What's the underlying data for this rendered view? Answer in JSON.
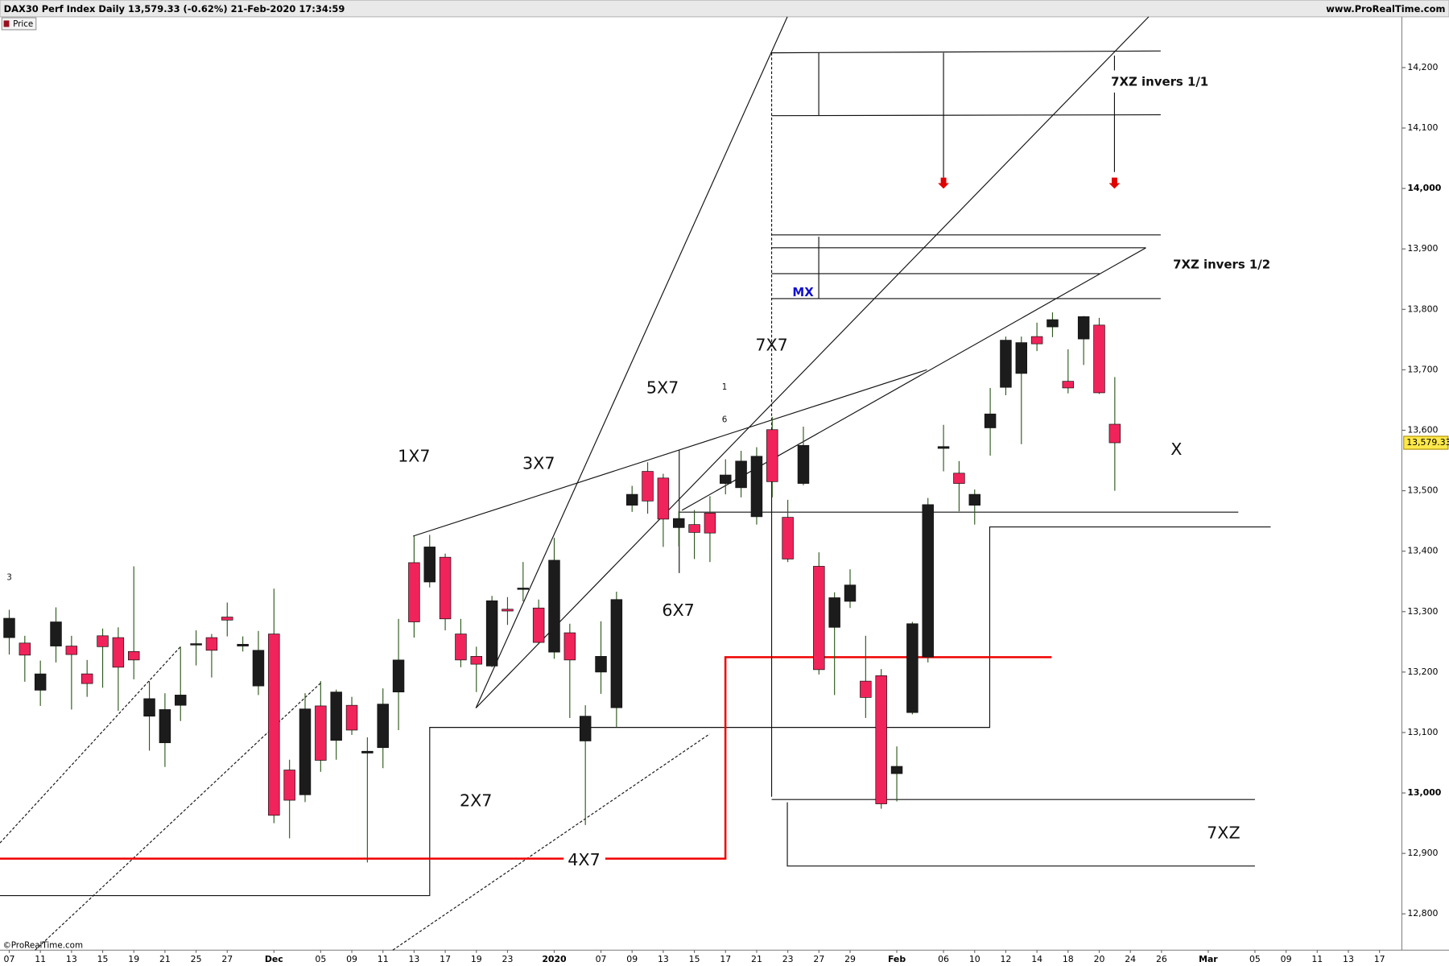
{
  "header": {
    "title": "DAX30 Perf Index Daily 13,579.33 (-0.62%) 21-Feb-2020 17:34:59",
    "site": "www.ProRealTime.com",
    "panel_label": "Price",
    "copyright": "©ProRealTime.com"
  },
  "chart_data": {
    "type": "candlestick",
    "categories": [
      "07",
      null,
      "11",
      null,
      "13",
      null,
      "15",
      null,
      "19",
      null,
      "21",
      null,
      "25",
      null,
      "27",
      null,
      null,
      "Dec",
      null,
      null,
      "05",
      null,
      "09",
      null,
      "11",
      null,
      "13",
      null,
      "17",
      null,
      "19",
      null,
      "23",
      null,
      null,
      "2020",
      null,
      null,
      "07",
      null,
      "09",
      null,
      "13",
      null,
      "15",
      null,
      "17",
      null,
      "21",
      null,
      "23",
      null,
      "27",
      null,
      "29",
      null,
      null,
      "Feb",
      null,
      null,
      "06",
      null,
      "10",
      null,
      "12",
      null,
      "14",
      null,
      "18",
      null,
      "20",
      null,
      "24",
      null,
      "26",
      null,
      null,
      "Mar",
      null,
      null,
      "05",
      null,
      "09",
      null,
      "11",
      null,
      "13",
      null,
      "17"
    ],
    "open": [
      13257,
      13248,
      13170,
      13243,
      13243,
      13197,
      13260,
      13257,
      13234,
      13127,
      13083,
      13145,
      13246,
      13257,
      13291,
      13243,
      13177,
      13263,
      13038,
      12997,
      13144,
      13087,
      13145,
      13066,
      13075,
      13167,
      13381,
      13349,
      13390,
      13263,
      13226,
      13210,
      13304,
      13337,
      13306,
      13233,
      13265,
      13086,
      13200,
      13141,
      13476,
      13532,
      13521,
      13439,
      13444,
      13463,
      13512,
      13505,
      13457,
      13601,
      13456,
      13512,
      13375,
      13274,
      13317,
      13185,
      13194,
      13032,
      13133,
      13225,
      13570,
      13529,
      13476,
      13604,
      13671,
      13694,
      13755,
      13771,
      13681,
      13751,
      13774,
      13610,
      null,
      null,
      null,
      null,
      null,
      null,
      null,
      null,
      null,
      null,
      null,
      null,
      null,
      null,
      null,
      null,
      null
    ],
    "high": [
      13303,
      13260,
      13219,
      13307,
      13260,
      13220,
      13272,
      13274,
      13375,
      13185,
      13165,
      13242,
      13269,
      13263,
      13315,
      13259,
      13268,
      13338,
      13055,
      13165,
      13185,
      13171,
      13159,
      13092,
      13173,
      13288,
      13425,
      13427,
      13396,
      13288,
      13242,
      13326,
      13324,
      13382,
      13320,
      13422,
      13280,
      13145,
      13284,
      13333,
      13508,
      13547,
      13528,
      13466,
      13468,
      13491,
      13552,
      13566,
      13572,
      13622,
      13485,
      13606,
      13398,
      13332,
      13370,
      13260,
      13205,
      13077,
      13283,
      13488,
      13609,
      13549,
      13502,
      13670,
      13755,
      13755,
      13778,
      13795,
      13734,
      13789,
      13786,
      13688,
      null,
      null,
      null,
      null,
      null,
      null,
      null,
      null,
      null,
      null,
      null,
      null,
      null,
      null,
      null,
      null,
      null
    ],
    "low": [
      13229,
      13184,
      13144,
      13216,
      13138,
      13159,
      13174,
      13136,
      13188,
      13070,
      13043,
      13119,
      13211,
      13191,
      13259,
      13234,
      13162,
      12950,
      12925,
      12985,
      13035,
      13055,
      13096,
      12885,
      13041,
      13104,
      13257,
      13340,
      13269,
      13208,
      13167,
      13208,
      13278,
      13317,
      13246,
      13222,
      13124,
      12947,
      13164,
      13109,
      13465,
      13462,
      13407,
      13408,
      13387,
      13382,
      13494,
      13489,
      13444,
      13489,
      13382,
      13509,
      13196,
      13162,
      13306,
      13124,
      12974,
      12986,
      13130,
      13216,
      13532,
      13466,
      13444,
      13558,
      13658,
      13577,
      13731,
      13754,
      13661,
      13708,
      13660,
      13500,
      null,
      null,
      null,
      null,
      null,
      null,
      null,
      null,
      null,
      null,
      null,
      null,
      null,
      null,
      null,
      null,
      null
    ],
    "close": [
      13289,
      13228,
      13197,
      13283,
      13229,
      13181,
      13242,
      13208,
      13220,
      13156,
      13138,
      13162,
      13247,
      13236,
      13286,
      13246,
      13236,
      12963,
      12988,
      13139,
      13054,
      13167,
      13104,
      13069,
      13147,
      13220,
      13283,
      13407,
      13288,
      13220,
      13213,
      13318,
      13301,
      13339,
      13249,
      13385,
      13220,
      13127,
      13226,
      13320,
      13494,
      13483,
      13453,
      13454,
      13431,
      13430,
      13526,
      13549,
      13557,
      13515,
      13387,
      13575,
      13204,
      13323,
      13344,
      13158,
      12982,
      13044,
      13280,
      13477,
      13573,
      13512,
      13494,
      13627,
      13749,
      13745,
      13743,
      13783,
      13670,
      13788,
      13662,
      13579.33,
      null,
      null,
      null,
      null,
      null,
      null,
      null,
      null,
      null,
      null,
      null,
      null,
      null,
      null,
      null,
      null,
      null
    ],
    "up_color": "#1c1c1c",
    "down_color": "#f0245a",
    "ylim": [
      12740,
      14284
    ],
    "yticks": [
      {
        "value": 12800,
        "label": "12,800"
      },
      {
        "value": 12900,
        "label": "12,900"
      },
      {
        "value": 13000,
        "label": "13,000"
      },
      {
        "value": 13100,
        "label": "13,100"
      },
      {
        "value": 13200,
        "label": "13,200"
      },
      {
        "value": 13300,
        "label": "13,300"
      },
      {
        "value": 13400,
        "label": "13,400"
      },
      {
        "value": 13500,
        "label": "13,500"
      },
      {
        "value": 13600,
        "label": "13,600"
      },
      {
        "value": 13700,
        "label": "13,700"
      },
      {
        "value": 13800,
        "label": "13,800"
      },
      {
        "value": 13900,
        "label": "13,900"
      },
      {
        "value": 14000,
        "label": "14,000"
      },
      {
        "value": 14100,
        "label": "14,100"
      },
      {
        "value": 14200,
        "label": "14,200"
      }
    ],
    "last_price": {
      "value": 13579.33,
      "label": "13,579.33"
    },
    "annotations": [
      "1X7",
      "2X7",
      "3X7",
      "4X7",
      "5X7",
      "6X7",
      "7X7",
      "MX",
      "7XZ invers 1/1",
      "7XZ invers 1/2",
      "7XZ",
      "X",
      "1",
      "6",
      "3"
    ]
  }
}
